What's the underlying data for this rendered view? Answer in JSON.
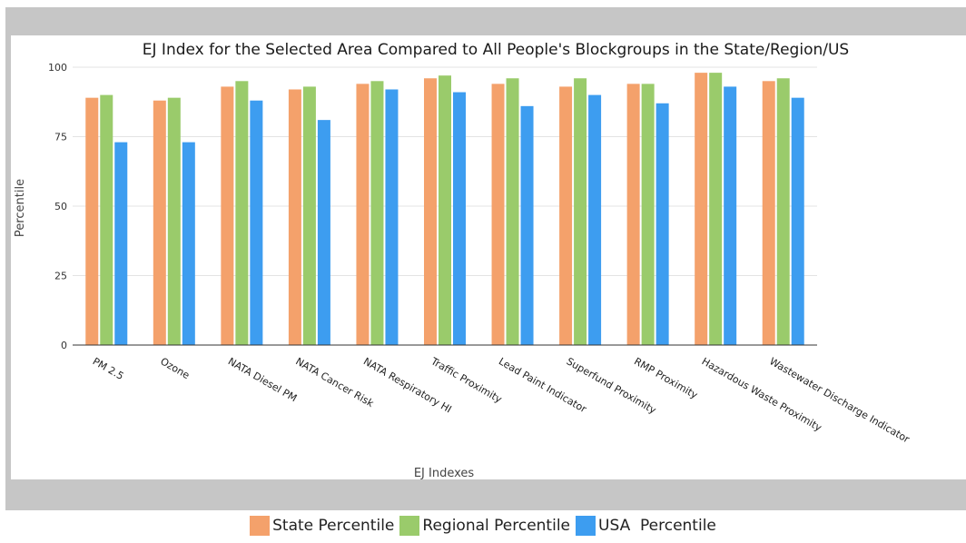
{
  "chart_data": {
    "type": "bar",
    "title": "EJ Index for the Selected Area Compared to All People's Blockgroups in the State/Region/US",
    "xlabel": "EJ Indexes",
    "ylabel": "Percentile",
    "ylim": [
      0,
      100
    ],
    "yticks": [
      "0",
      "25",
      "50",
      "75",
      "100"
    ],
    "grid": true,
    "legend_position": "bottom",
    "categories": [
      "PM 2.5",
      "Ozone",
      "NATA Diesel PM",
      "NATA Cancer Risk",
      "NATA Respiratory HI",
      "Traffic Proximity",
      "Lead Paint Indicator",
      "Superfund Proximity",
      "RMP Proximity",
      "Hazardous Waste Proximity",
      "Wastewater Discharge Indicator"
    ],
    "series": [
      {
        "name": "State Percentile",
        "color": "#f4a16b",
        "values": [
          89,
          88,
          93,
          92,
          94,
          96,
          94,
          93,
          94,
          98,
          95
        ]
      },
      {
        "name": "Regional Percentile",
        "color": "#9acb6b",
        "values": [
          90,
          89,
          95,
          93,
          95,
          97,
          96,
          96,
          94,
          98,
          96
        ]
      },
      {
        "name": "USA Percentile",
        "color": "#3d9df0",
        "values": [
          73,
          73,
          88,
          81,
          92,
          91,
          86,
          90,
          87,
          93,
          89
        ]
      }
    ]
  },
  "legend": [
    {
      "label": "State Percentile",
      "color": "#f4a16b"
    },
    {
      "label": "Regional Percentile",
      "color": "#9acb6b"
    },
    {
      "label": "USA  Percentile",
      "color": "#3d9df0"
    }
  ]
}
